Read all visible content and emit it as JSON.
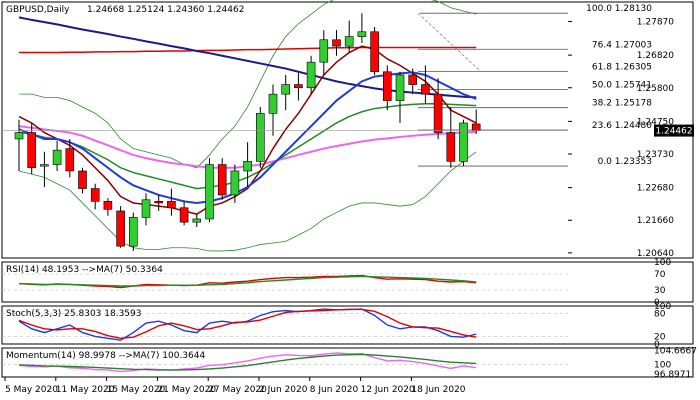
{
  "header": {
    "symbol": "GBPUSD,Daily",
    "ohlc": "1.24668 1.25124 1.24360 1.24462"
  },
  "colors": {
    "bull": "#32cd32",
    "bear": "#ff0000",
    "ma_red": "#e00000",
    "ma_navy": "#1a1a8c",
    "ma_blue": "#1e3cdc",
    "ma_magenta": "#ee66ee",
    "ma_darkred": "#8b0000",
    "ma_green": "#228b22",
    "bb": "#2e8b2e",
    "fib": "#555555",
    "price_label_bg": "#000000",
    "grid": "#c8c8c8"
  },
  "chart_data": {
    "type": "candlestick",
    "ylim": [
      1.2048,
      1.2848
    ],
    "price_ticks": [
      "1.27870",
      "1.26820",
      "1.25800",
      "1.24750",
      "1.23730",
      "1.22680",
      "1.21660",
      "1.20640"
    ],
    "current_price": "1.24462",
    "x_labels": [
      "5 May 2020",
      "11 May 2020",
      "15 May 2020",
      "21 May 2020",
      "27 May 2020",
      "2 Jun 2020",
      "8 Jun 2020",
      "12 Jun 2020",
      "18 Jun 2020"
    ],
    "candles": [
      {
        "o": 1.242,
        "h": 1.248,
        "l": 1.232,
        "c": 1.244
      },
      {
        "o": 1.244,
        "h": 1.247,
        "l": 1.231,
        "c": 1.233
      },
      {
        "o": 1.2335,
        "h": 1.238,
        "l": 1.227,
        "c": 1.234
      },
      {
        "o": 1.234,
        "h": 1.2415,
        "l": 1.232,
        "c": 1.2385
      },
      {
        "o": 1.239,
        "h": 1.242,
        "l": 1.23,
        "c": 1.232
      },
      {
        "o": 1.232,
        "h": 1.233,
        "l": 1.225,
        "c": 1.2265
      },
      {
        "o": 1.2265,
        "h": 1.228,
        "l": 1.22,
        "c": 1.2225
      },
      {
        "o": 1.2225,
        "h": 1.2235,
        "l": 1.218,
        "c": 1.22
      },
      {
        "o": 1.2195,
        "h": 1.221,
        "l": 1.208,
        "c": 1.2085
      },
      {
        "o": 1.2085,
        "h": 1.219,
        "l": 1.207,
        "c": 1.2175
      },
      {
        "o": 1.2175,
        "h": 1.225,
        "l": 1.215,
        "c": 1.223
      },
      {
        "o": 1.2225,
        "h": 1.2245,
        "l": 1.2195,
        "c": 1.222
      },
      {
        "o": 1.2225,
        "h": 1.2265,
        "l": 1.218,
        "c": 1.2205
      },
      {
        "o": 1.2205,
        "h": 1.2225,
        "l": 1.215,
        "c": 1.216
      },
      {
        "o": 1.216,
        "h": 1.2185,
        "l": 1.2145,
        "c": 1.217
      },
      {
        "o": 1.217,
        "h": 1.236,
        "l": 1.216,
        "c": 1.234
      },
      {
        "o": 1.234,
        "h": 1.236,
        "l": 1.223,
        "c": 1.2245
      },
      {
        "o": 1.2245,
        "h": 1.234,
        "l": 1.222,
        "c": 1.232
      },
      {
        "o": 1.232,
        "h": 1.241,
        "l": 1.227,
        "c": 1.235
      },
      {
        "o": 1.235,
        "h": 1.252,
        "l": 1.233,
        "c": 1.25
      },
      {
        "o": 1.25,
        "h": 1.259,
        "l": 1.243,
        "c": 1.256
      },
      {
        "o": 1.256,
        "h": 1.262,
        "l": 1.251,
        "c": 1.259
      },
      {
        "o": 1.259,
        "h": 1.263,
        "l": 1.254,
        "c": 1.258
      },
      {
        "o": 1.258,
        "h": 1.268,
        "l": 1.256,
        "c": 1.266
      },
      {
        "o": 1.266,
        "h": 1.276,
        "l": 1.262,
        "c": 1.273
      },
      {
        "o": 1.273,
        "h": 1.276,
        "l": 1.268,
        "c": 1.271
      },
      {
        "o": 1.271,
        "h": 1.279,
        "l": 1.269,
        "c": 1.274
      },
      {
        "o": 1.274,
        "h": 1.2813,
        "l": 1.272,
        "c": 1.2755
      },
      {
        "o": 1.2755,
        "h": 1.277,
        "l": 1.262,
        "c": 1.263
      },
      {
        "o": 1.263,
        "h": 1.265,
        "l": 1.251,
        "c": 1.254
      },
      {
        "o": 1.254,
        "h": 1.263,
        "l": 1.247,
        "c": 1.262
      },
      {
        "o": 1.262,
        "h": 1.264,
        "l": 1.256,
        "c": 1.259
      },
      {
        "o": 1.259,
        "h": 1.265,
        "l": 1.253,
        "c": 1.256
      },
      {
        "o": 1.256,
        "h": 1.261,
        "l": 1.242,
        "c": 1.244
      },
      {
        "o": 1.244,
        "h": 1.252,
        "l": 1.233,
        "c": 1.235
      },
      {
        "o": 1.235,
        "h": 1.248,
        "l": 1.2335,
        "c": 1.247
      },
      {
        "o": 1.2467,
        "h": 1.2512,
        "l": 1.2436,
        "c": 1.2446
      }
    ],
    "moving_averages": [
      {
        "key": "ma_red",
        "values": [
          1.269,
          1.269,
          1.269,
          1.269,
          1.2691,
          1.2691,
          1.2692,
          1.2692,
          1.2693,
          1.2693,
          1.2694,
          1.2694,
          1.2695,
          1.2695,
          1.2696,
          1.2697,
          1.2697,
          1.2698,
          1.2699,
          1.2699,
          1.27,
          1.2701,
          1.2702,
          1.2703,
          1.2704,
          1.2705,
          1.2705,
          1.2706,
          1.2706,
          1.2706,
          1.2706,
          1.2706,
          1.2706,
          1.2706,
          1.2706,
          1.2706,
          1.2706
        ]
      },
      {
        "key": "ma_navy",
        "values": [
          1.28,
          1.2792,
          1.2785,
          1.2778,
          1.277,
          1.2762,
          1.2755,
          1.2748,
          1.274,
          1.2733,
          1.2725,
          1.2718,
          1.271,
          1.2703,
          1.2695,
          1.2688,
          1.268,
          1.2672,
          1.2664,
          1.2656,
          1.2648,
          1.264,
          1.263,
          1.262,
          1.261,
          1.26,
          1.2592,
          1.2585,
          1.2578,
          1.2573,
          1.2568,
          1.2565,
          1.2562,
          1.2558,
          1.2555,
          1.2552,
          1.255
        ]
      },
      {
        "key": "ma_blue",
        "values": [
          1.245,
          1.2435,
          1.242,
          1.242,
          1.241,
          1.239,
          1.236,
          1.233,
          1.23,
          1.2275,
          1.226,
          1.2245,
          1.2235,
          1.2225,
          1.222,
          1.2225,
          1.2235,
          1.225,
          1.227,
          1.23,
          1.234,
          1.238,
          1.242,
          1.246,
          1.25,
          1.254,
          1.257,
          1.26,
          1.2615,
          1.262,
          1.2625,
          1.2628,
          1.262,
          1.26,
          1.258,
          1.256,
          1.2545
        ]
      },
      {
        "key": "ma_magenta",
        "values": [
          1.246,
          1.2455,
          1.245,
          1.2445,
          1.244,
          1.243,
          1.2415,
          1.24,
          1.2385,
          1.237,
          1.236,
          1.2352,
          1.2345,
          1.234,
          1.2335,
          1.233,
          1.233,
          1.233,
          1.2335,
          1.234,
          1.235,
          1.236,
          1.237,
          1.238,
          1.239,
          1.2398,
          1.2405,
          1.2412,
          1.2418,
          1.2422,
          1.2426,
          1.243,
          1.2433,
          1.2436,
          1.2438,
          1.244,
          1.2442
        ]
      },
      {
        "key": "ma_darkred",
        "values": [
          1.249,
          1.247,
          1.244,
          1.242,
          1.24,
          1.237,
          1.233,
          1.229,
          1.224,
          1.222,
          1.2215,
          1.221,
          1.2205,
          1.2195,
          1.2185,
          1.221,
          1.222,
          1.224,
          1.2265,
          1.232,
          1.239,
          1.245,
          1.25,
          1.256,
          1.262,
          1.266,
          1.269,
          1.271,
          1.27,
          1.267,
          1.265,
          1.2625,
          1.26,
          1.256,
          1.251,
          1.249,
          1.247
        ]
      },
      {
        "key": "ma_green",
        "values": [
          1.244,
          1.2435,
          1.2425,
          1.242,
          1.241,
          1.2395,
          1.2375,
          1.2355,
          1.233,
          1.2315,
          1.2305,
          1.2295,
          1.2285,
          1.2275,
          1.2265,
          1.227,
          1.2275,
          1.2285,
          1.23,
          1.232,
          1.2345,
          1.237,
          1.2395,
          1.242,
          1.2445,
          1.247,
          1.249,
          1.2505,
          1.2515,
          1.252,
          1.2525,
          1.2528,
          1.253,
          1.253,
          1.2528,
          1.2526,
          1.2524
        ]
      },
      {
        "key": "bb",
        "values": [
          1.232,
          1.231,
          1.23,
          1.228,
          1.226,
          1.222,
          1.218,
          1.214,
          1.21,
          1.208,
          1.2075,
          1.2075,
          1.208,
          1.208,
          1.2078,
          1.207,
          1.207,
          1.2072,
          1.208,
          1.209,
          1.2095,
          1.21,
          1.212,
          1.214,
          1.217,
          1.219,
          1.221,
          1.222,
          1.222,
          1.2215,
          1.221,
          1.2215,
          1.224,
          1.228,
          1.232,
          1.235,
          1.238
        ]
      },
      {
        "key": "bb",
        "values": [
          1.256,
          1.256,
          1.255,
          1.255,
          1.254,
          1.252,
          1.25,
          1.247,
          1.242,
          1.239,
          1.238,
          1.237,
          1.236,
          1.234,
          1.233,
          1.237,
          1.242,
          1.246,
          1.252,
          1.26,
          1.268,
          1.274,
          1.278,
          1.281,
          1.284,
          1.286,
          1.288,
          1.289,
          1.289,
          1.2888,
          1.288,
          1.287,
          1.286,
          1.285,
          1.283,
          1.282,
          1.281
        ]
      }
    ],
    "fib_levels": [
      {
        "label": "100.0 1.28130",
        "price": 1.2813
      },
      {
        "label": "76.4 1.27003",
        "price": 1.27003
      },
      {
        "label": "61.8 1.26305",
        "price": 1.26305
      },
      {
        "label": "50.0 1.25741",
        "price": 1.25741
      },
      {
        "label": "38.2 1.25178",
        "price": 1.25178
      },
      {
        "label": "23.6 1.24480",
        "price": 1.2448
      },
      {
        "label": "0.0 1.23353",
        "price": 1.23353
      }
    ],
    "indicators": [
      {
        "title": "RSI(14) 48.1953 -->MA(7) 50.3364",
        "ylim": [
          0,
          100
        ],
        "tick_labels": [
          "100",
          "70",
          "30",
          "0"
        ],
        "tick_values": [
          100,
          70,
          30,
          0
        ],
        "levels": [
          70,
          30
        ],
        "series": [
          {
            "key": "ma_red",
            "values": [
              46,
              44,
              43,
              45,
              44,
              42,
              40,
              39,
              36,
              40,
              44,
              43,
              42,
              41,
              42,
              48,
              47,
              50,
              52,
              56,
              59,
              61,
              61,
              62,
              64,
              64,
              65,
              66,
              61,
              57,
              58,
              57,
              56,
              52,
              50,
              51,
              48
            ]
          },
          {
            "key": "ma_green",
            "values": [
              46,
              45,
              44,
              44,
              44,
              43,
              42,
              41,
              40,
              40,
              41,
              41,
              42,
              42,
              42,
              43,
              44,
              46,
              48,
              51,
              53,
              55,
              57,
              59,
              61,
              62,
              63,
              64,
              63,
              62,
              61,
              60,
              59,
              57,
              55,
              53,
              50
            ]
          }
        ]
      },
      {
        "title": "Stoch(5,3,3) 25.8303 18.3593",
        "ylim": [
          0,
          100
        ],
        "tick_labels": [
          "100",
          "80",
          "20",
          "0"
        ],
        "tick_values": [
          100,
          80,
          20,
          0
        ],
        "levels": [
          80,
          20
        ],
        "series": [
          {
            "key": "ma_blue",
            "values": [
              60,
              40,
              30,
              40,
              50,
              30,
              20,
              15,
              10,
              30,
              55,
              60,
              50,
              35,
              30,
              55,
              60,
              55,
              60,
              75,
              85,
              88,
              85,
              88,
              92,
              90,
              91,
              92,
              75,
              50,
              40,
              45,
              45,
              35,
              20,
              18,
              26
            ]
          },
          {
            "key": "ma_red",
            "values": [
              62,
              50,
              40,
              37,
              40,
              40,
              33,
              22,
              15,
              18,
              32,
              48,
              55,
              48,
              38,
              40,
              48,
              57,
              58,
              63,
              73,
              83,
              86,
              87,
              88,
              90,
              91,
              91,
              86,
              72,
              55,
              45,
              43,
              42,
              33,
              24,
              18
            ]
          }
        ]
      },
      {
        "title": "Momentum(14) 98.9978 -->MA(7) 100.3644",
        "ylim": [
          96.0,
          105.4
        ],
        "tick_labels": [
          "104.6667",
          "100",
          "96.8971"
        ],
        "tick_values": [
          104.6667,
          100,
          96.8971
        ],
        "levels": [
          100
        ],
        "series": [
          {
            "key": "ma_magenta",
            "values": [
              99.8,
              99.4,
              99.3,
              99.5,
              99.0,
              98.8,
              98.4,
              98.3,
              97.8,
              98.1,
              98.6,
              98.4,
              98.2,
              98.6,
              98.9,
              99.8,
              100.0,
              100.6,
              101.2,
              102.1,
              102.8,
              103.2,
              103.0,
              102.9,
              103.4,
              103.8,
              103.5,
              103.6,
              102.3,
              101.2,
              101.4,
              101.0,
              100.4,
              99.6,
              98.8,
              99.6,
              99.0
            ]
          },
          {
            "key": "ma_darkgreen",
            "values": [
              99.9,
              99.8,
              99.6,
              99.5,
              99.4,
              99.3,
              99.1,
              98.9,
              98.7,
              98.5,
              98.4,
              98.3,
              98.3,
              98.3,
              98.4,
              98.6,
              98.9,
              99.3,
              99.7,
              100.3,
              100.9,
              101.5,
              102.0,
              102.4,
              102.8,
              103.1,
              103.2,
              103.3,
              103.1,
              102.8,
              102.5,
              102.1,
              101.7,
              101.2,
              100.8,
              100.6,
              100.4
            ]
          }
        ]
      }
    ]
  }
}
